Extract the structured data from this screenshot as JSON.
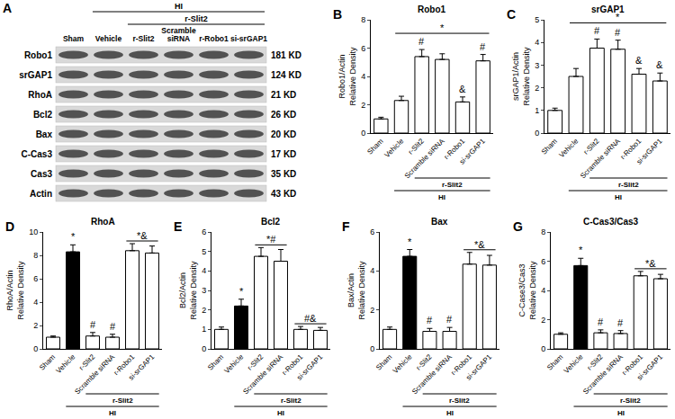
{
  "chart_data": [
    {
      "type": "bar",
      "panel": "B",
      "title": "Robo1",
      "y_label": "Robo1/Actin\nRelative Density",
      "categories": [
        "Sham",
        "Vehicle",
        "r-Slit2",
        "Scramble siRNA",
        "r-Robo1",
        "si-srGAP1"
      ],
      "values": [
        1.0,
        2.3,
        5.4,
        5.2,
        2.2,
        5.1
      ],
      "errors": [
        0.12,
        0.3,
        0.5,
        0.4,
        0.35,
        0.45
      ],
      "colors": [
        "#ffffff",
        "#ffffff",
        "#ffffff",
        "#ffffff",
        "#ffffff",
        "#ffffff"
      ],
      "ylim": [
        0,
        8
      ],
      "yticks": [
        0,
        2,
        4,
        6,
        8
      ],
      "grid": false,
      "markers": [
        {
          "text": "#",
          "from": "r-Slit2",
          "to": "r-Slit2"
        },
        {
          "text": "&",
          "from": "r-Robo1",
          "to": "r-Robo1"
        },
        {
          "text": "#",
          "from": "si-srGAP1",
          "to": "si-srGAP1"
        },
        {
          "text": "*",
          "from": "Vehicle",
          "to": "si-srGAP1"
        }
      ],
      "brackets": [
        {
          "label": "r-Slit2",
          "from": "r-Slit2",
          "to": "si-srGAP1"
        },
        {
          "label": "HI",
          "from": "Vehicle",
          "to": "si-srGAP1"
        }
      ]
    },
    {
      "type": "bar",
      "panel": "C",
      "title": "srGAP1",
      "y_label": "srGAP1/Actin\nRelative Density",
      "categories": [
        "Sham",
        "Vehicle",
        "r-Slit2",
        "Scramble siRNA",
        "r-Robo1",
        "si-srGAP1"
      ],
      "values": [
        1.0,
        2.5,
        3.75,
        3.7,
        2.6,
        2.3
      ],
      "errors": [
        0.1,
        0.35,
        0.4,
        0.4,
        0.25,
        0.35
      ],
      "colors": [
        "#ffffff",
        "#ffffff",
        "#ffffff",
        "#ffffff",
        "#ffffff",
        "#ffffff"
      ],
      "ylim": [
        0,
        5
      ],
      "yticks": [
        0,
        1,
        2,
        3,
        4,
        5
      ],
      "grid": false,
      "markers": [
        {
          "text": "#",
          "from": "r-Slit2",
          "to": "r-Slit2"
        },
        {
          "text": "#",
          "from": "Scramble siRNA",
          "to": "Scramble siRNA"
        },
        {
          "text": "&",
          "from": "r-Robo1",
          "to": "r-Robo1"
        },
        {
          "text": "&",
          "from": "si-srGAP1",
          "to": "si-srGAP1"
        },
        {
          "text": "*",
          "from": "Vehicle",
          "to": "si-srGAP1"
        }
      ],
      "brackets": [
        {
          "label": "r-Slit2",
          "from": "r-Slit2",
          "to": "si-srGAP1"
        },
        {
          "label": "HI",
          "from": "Vehicle",
          "to": "si-srGAP1"
        }
      ]
    },
    {
      "type": "bar",
      "panel": "D",
      "title": "RhoA",
      "y_label": "RhoA/Actin\nRelative Density",
      "categories": [
        "Sham",
        "Vehicle",
        "r-Slit2",
        "Scramble siRNA",
        "r-Robo1",
        "si-srGAP1"
      ],
      "values": [
        1.0,
        8.3,
        1.1,
        1.0,
        8.4,
        8.2
      ],
      "errors": [
        0.1,
        0.6,
        0.3,
        0.25,
        0.6,
        0.6
      ],
      "colors": [
        "#ffffff",
        "#000000",
        "#ffffff",
        "#ffffff",
        "#ffffff",
        "#ffffff"
      ],
      "ylim": [
        0,
        10
      ],
      "yticks": [
        0,
        2,
        4,
        6,
        8,
        10
      ],
      "grid": false,
      "markers": [
        {
          "text": "*",
          "from": "Vehicle",
          "to": "Vehicle"
        },
        {
          "text": "#",
          "from": "r-Slit2",
          "to": "r-Slit2"
        },
        {
          "text": "#",
          "from": "Scramble siRNA",
          "to": "Scramble siRNA"
        },
        {
          "text": "*&",
          "from": "r-Robo1",
          "to": "si-srGAP1"
        }
      ],
      "brackets": [
        {
          "label": "r-Slit2",
          "from": "r-Slit2",
          "to": "si-srGAP1"
        },
        {
          "label": "HI",
          "from": "Vehicle",
          "to": "si-srGAP1"
        }
      ]
    },
    {
      "type": "bar",
      "panel": "E",
      "title": "Bcl2",
      "y_label": "Bcl2/Actin\nRelative Density",
      "categories": [
        "Sham",
        "Vehicle",
        "r-Slit2",
        "Scramble siRNA",
        "r-Robo1",
        "si-srGAP1"
      ],
      "values": [
        1.0,
        2.2,
        4.75,
        4.5,
        1.0,
        0.95
      ],
      "errors": [
        0.12,
        0.35,
        0.45,
        0.6,
        0.15,
        0.15
      ],
      "colors": [
        "#ffffff",
        "#000000",
        "#ffffff",
        "#ffffff",
        "#ffffff",
        "#ffffff"
      ],
      "ylim": [
        0,
        6
      ],
      "yticks": [
        0,
        1,
        2,
        3,
        4,
        5,
        6
      ],
      "grid": false,
      "markers": [
        {
          "text": "*",
          "from": "Vehicle",
          "to": "Vehicle"
        },
        {
          "text": "*#",
          "from": "r-Slit2",
          "to": "Scramble siRNA"
        },
        {
          "text": "#&",
          "from": "r-Robo1",
          "to": "si-srGAP1"
        }
      ],
      "brackets": [
        {
          "label": "r-Slit2",
          "from": "r-Slit2",
          "to": "si-srGAP1"
        },
        {
          "label": "HI",
          "from": "Vehicle",
          "to": "si-srGAP1"
        }
      ]
    },
    {
      "type": "bar",
      "panel": "F",
      "title": "Bax",
      "y_label": "Bax/Actin\nRelative Density",
      "categories": [
        "Sham",
        "Vehicle",
        "r-Slit2",
        "Scramble siRNA",
        "r-Robo1",
        "si-srGAP1"
      ],
      "values": [
        1.0,
        4.75,
        0.9,
        0.9,
        4.35,
        4.3
      ],
      "errors": [
        0.12,
        0.35,
        0.15,
        0.2,
        0.6,
        0.5
      ],
      "colors": [
        "#ffffff",
        "#000000",
        "#ffffff",
        "#ffffff",
        "#ffffff",
        "#ffffff"
      ],
      "ylim": [
        0,
        6
      ],
      "yticks": [
        0,
        2,
        4,
        6
      ],
      "grid": false,
      "markers": [
        {
          "text": "*",
          "from": "Vehicle",
          "to": "Vehicle"
        },
        {
          "text": "#",
          "from": "r-Slit2",
          "to": "r-Slit2"
        },
        {
          "text": "#",
          "from": "Scramble siRNA",
          "to": "Scramble siRNA"
        },
        {
          "text": "*&",
          "from": "r-Robo1",
          "to": "si-srGAP1"
        }
      ],
      "brackets": [
        {
          "label": "r-Slit2",
          "from": "r-Slit2",
          "to": "si-srGAP1"
        },
        {
          "label": "HI",
          "from": "Vehicle",
          "to": "si-srGAP1"
        }
      ]
    },
    {
      "type": "bar",
      "panel": "G",
      "title": "C-Cas3/Cas3",
      "y_label": "C-Case3/Cas3\nRelative Density",
      "categories": [
        "Sham",
        "Vehicle",
        "r-Slit2",
        "Scramble siRNA",
        "r-Robo1",
        "si-srGAP1"
      ],
      "values": [
        1.0,
        5.7,
        1.1,
        1.05,
        5.0,
        4.8
      ],
      "errors": [
        0.1,
        0.5,
        0.2,
        0.2,
        0.3,
        0.3
      ],
      "colors": [
        "#ffffff",
        "#000000",
        "#ffffff",
        "#ffffff",
        "#ffffff",
        "#ffffff"
      ],
      "ylim": [
        0,
        8
      ],
      "yticks": [
        0,
        2,
        4,
        6,
        8
      ],
      "grid": false,
      "markers": [
        {
          "text": "*",
          "from": "Vehicle",
          "to": "Vehicle"
        },
        {
          "text": "#",
          "from": "r-Slit2",
          "to": "r-Slit2"
        },
        {
          "text": "#",
          "from": "Scramble siRNA",
          "to": "Scramble siRNA"
        },
        {
          "text": "*&",
          "from": "r-Robo1",
          "to": "si-srGAP1"
        }
      ],
      "brackets": [
        {
          "label": "r-Slit2",
          "from": "r-Slit2",
          "to": "si-srGAP1"
        },
        {
          "label": "HI",
          "from": "Vehicle",
          "to": "si-srGAP1"
        }
      ]
    }
  ],
  "blot": {
    "panel": "A",
    "columns": [
      "Sham",
      "Vehicle",
      "r-Slit2",
      "Scramble siRNA",
      "r-Robo1",
      "si-srGAP1"
    ],
    "header_groups": [
      {
        "label": "HI",
        "from": "Vehicle",
        "to": "si-srGAP1"
      },
      {
        "label": "r-Slit2",
        "from": "r-Slit2",
        "to": "si-srGAP1"
      }
    ],
    "rows": [
      {
        "label": "Robo1",
        "size": "181 KD"
      },
      {
        "label": "srGAP1",
        "size": "124 KD"
      },
      {
        "label": "RhoA",
        "size": "21 KD"
      },
      {
        "label": "Bcl2",
        "size": "26 KD"
      },
      {
        "label": "Bax",
        "size": "20 KD"
      },
      {
        "label": "C-Cas3",
        "size": "17 KD"
      },
      {
        "label": "Cas3",
        "size": "35 KD"
      },
      {
        "label": "Actin",
        "size": "43 KD"
      }
    ]
  }
}
